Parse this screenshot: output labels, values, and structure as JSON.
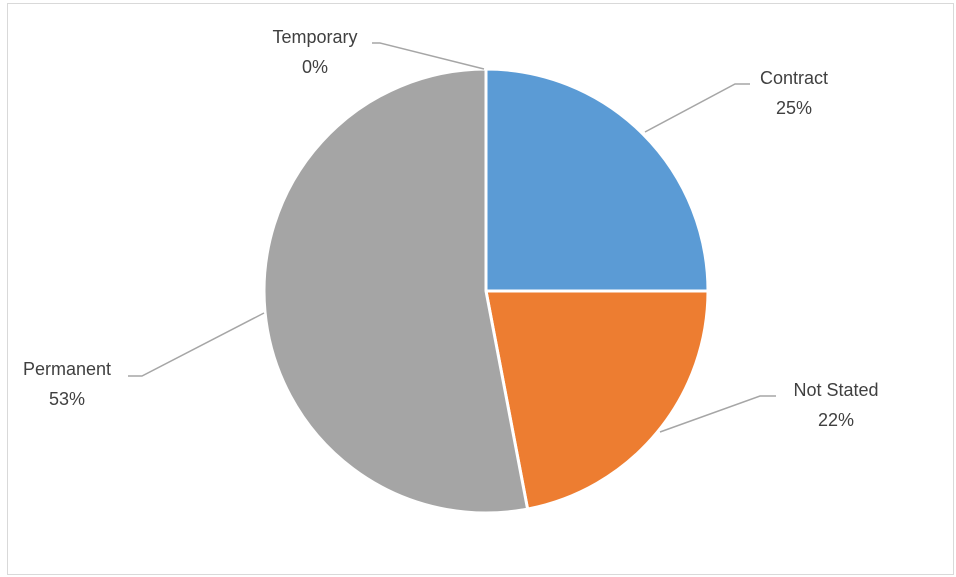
{
  "chart_data": {
    "type": "pie",
    "categories": [
      "Contract",
      "Not Stated",
      "Permanent",
      "Temporary"
    ],
    "values": [
      25,
      22,
      53,
      0
    ],
    "value_labels": [
      "25%",
      "22%",
      "53%",
      "0%"
    ],
    "colors": [
      "#5b9bd5",
      "#ed7d31",
      "#a5a5a5",
      "#ffc000"
    ],
    "title": "",
    "legend": "none",
    "data_labels": "category and percentage, outside with leader lines"
  }
}
